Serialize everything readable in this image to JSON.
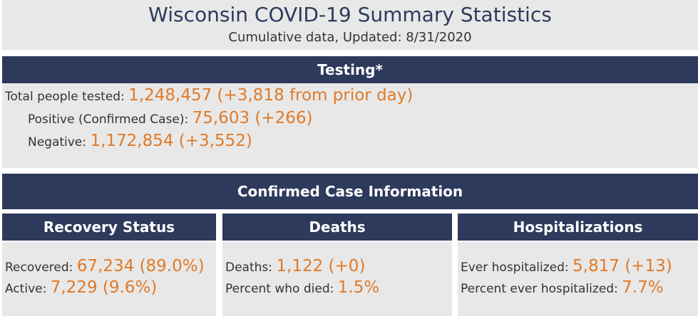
{
  "header": {
    "title": "Wisconsin COVID-19 Summary Statistics",
    "subtitle": "Cumulative data, Updated: 8/31/2020"
  },
  "testing": {
    "heading": "Testing*",
    "rows": [
      {
        "label": "Total people tested:",
        "value": "1,248,457 (+3,818 from prior day)"
      },
      {
        "label": "Positive (Confirmed Case):",
        "value": "75,603 (+266)"
      },
      {
        "label": "Negative:",
        "value": "1,172,854 (+3,552)"
      }
    ]
  },
  "confirmed": {
    "heading": "Confirmed Case Information",
    "panels": [
      {
        "heading": "Recovery Status",
        "rows": [
          {
            "label": "Recovered:",
            "value": "67,234 (89.0%)"
          },
          {
            "label": "Active:",
            "value": "7,229 (9.6%)"
          }
        ]
      },
      {
        "heading": "Deaths",
        "rows": [
          {
            "label": "Deaths:",
            "value": "1,122 (+0)"
          },
          {
            "label": "Percent who died:",
            "value": "1.5%"
          }
        ]
      },
      {
        "heading": "Hospitalizations",
        "rows": [
          {
            "label": "Ever hospitalized:",
            "value": "5,817 (+13)"
          },
          {
            "label": "Percent ever hospitalized:",
            "value": "7.7%"
          }
        ]
      }
    ]
  }
}
